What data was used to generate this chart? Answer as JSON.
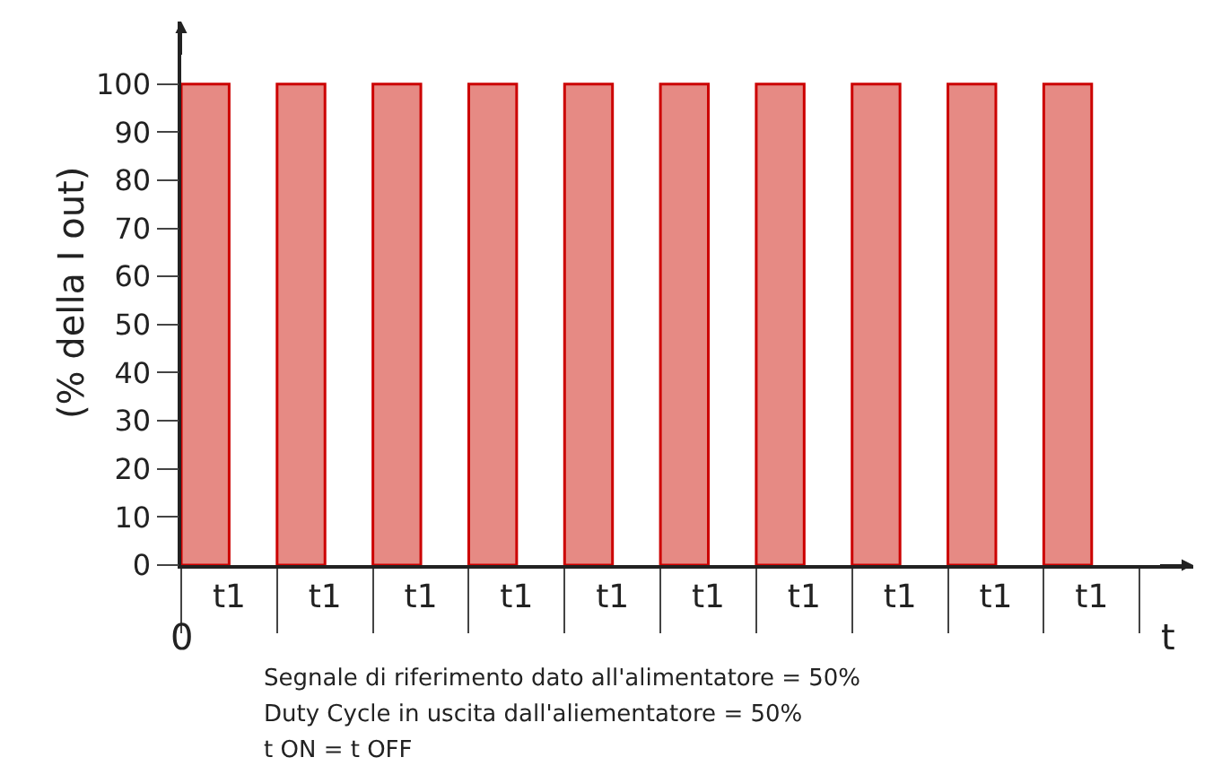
{
  "chart_data": {
    "type": "bar",
    "categories": [
      "t1",
      "t1",
      "t1",
      "t1",
      "t1",
      "t1",
      "t1",
      "t1",
      "t1",
      "t1"
    ],
    "values": [
      100,
      100,
      100,
      100,
      100,
      100,
      100,
      100,
      100,
      100
    ],
    "color": "#e68a84",
    "ylim": [
      0,
      113
    ],
    "yticks": [
      0,
      10,
      20,
      30,
      40,
      50,
      60,
      70,
      80,
      90,
      100
    ],
    "ylabel": "(% della I out)",
    "xlabel": "t",
    "annotations": [
      "0",
      "Segnale di riferimento dato all'alimentatore = 50%",
      "Duty Cycle in uscita dall'aliementatore = 50%",
      "t ON = t OFF"
    ]
  }
}
